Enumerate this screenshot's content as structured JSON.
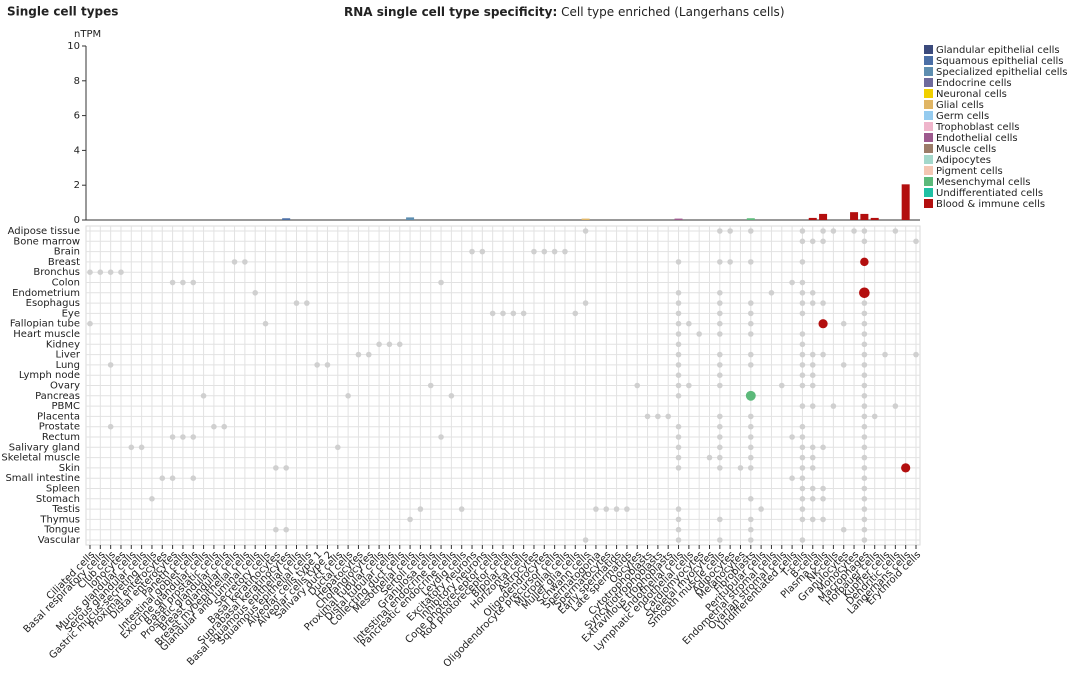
{
  "header": "Single cell types",
  "chart_data": {
    "type": "bar",
    "title": "RNA single cell type specificity:",
    "subtitle": "Cell type enriched (Langerhans cells)",
    "ylabel": "nTPM",
    "ylim": [
      0,
      10
    ],
    "yticks": [
      0,
      2,
      4,
      6,
      8,
      10
    ],
    "categories": [
      "Ciliated cells",
      "Basal respiratory cells",
      "Club cells",
      "Ionocytes",
      "Mucus glandular cells",
      "Serous glandular cells",
      "Gastric mucus-secreting cells",
      "Proximal enterocytes",
      "Distal enterocytes",
      "Paneth cells",
      "Intestinal goblet cells",
      "Exocrine glandular cells",
      "Basal prostatic cells",
      "Prostatic glandular cells",
      "Breast glandular cells",
      "Breast myoepithelial cells",
      "Glandular and luminal cells",
      "Secretory cells",
      "Basal keratinocytes",
      "Suprabasal keratinocytes",
      "Basal squamous epithelial cells",
      "Squamous epithelial cells",
      "Alveolar cells type 1",
      "Alveolar cells type 2",
      "Salivary duct cells",
      "Ductal cells",
      "Hepatocytes",
      "Cholangiocytes",
      "Proximal tubular cells",
      "Distal tubular cells",
      "Collecting duct cells",
      "Mesothelial cells",
      "Sertoli cells",
      "Granulosa cells",
      "Intestinal endocrine cells",
      "Pancreatic endocrine cells",
      "Leydig cells",
      "Excitatory neurons",
      "Inhibitory neurons",
      "Cone photoreceptor cells",
      "Rod photoreceptor cells",
      "Bipolar cells",
      "Horizontal cells",
      "Astrocytes",
      "Oligodendrocytes",
      "Oligodendrocyte precursor cells",
      "Microglial cells",
      "Müller glia cells",
      "Schwann cells",
      "Spermatogonia",
      "Spermatocytes",
      "Early spermatids",
      "Late spermatids",
      "Oocytes",
      "Cytotrophoblasts",
      "Syncytiotrophoblasts",
      "Extravillous trophoblasts",
      "Endothelial cells",
      "Lymphatic endothelial cells",
      "Cardiomyocytes",
      "Skeletal myocytes",
      "Smooth muscle cells",
      "Adipocytes",
      "Melanocytes",
      "Fibroblasts",
      "Peritubular cells",
      "Endometrial stromal cells",
      "Ovarian stromal cells",
      "Undifferentiated cells",
      "T-cells",
      "B-cells",
      "Plasma cells",
      "NK-cells",
      "Granulocytes",
      "Monocytes",
      "Macrophages",
      "Hofbauer cells",
      "Kupffer cells",
      "Dendritic cells",
      "Langerhans cells",
      "Erythroid cells"
    ],
    "values": [
      0,
      0,
      0,
      0,
      0,
      0,
      0,
      0,
      0,
      0,
      0,
      0,
      0,
      0,
      0,
      0,
      0,
      0,
      0,
      0.1,
      0,
      0,
      0,
      0,
      0,
      0,
      0,
      0,
      0,
      0,
      0,
      0.15,
      0,
      0,
      0,
      0,
      0,
      0,
      0,
      0,
      0,
      0,
      0,
      0,
      0,
      0,
      0,
      0,
      0.08,
      0,
      0,
      0,
      0,
      0,
      0,
      0,
      0,
      0.08,
      0,
      0,
      0,
      0,
      0,
      0,
      0.1,
      0,
      0,
      0,
      0,
      0,
      0.12,
      0.35,
      0,
      0,
      0.45,
      0.35,
      0.12,
      0,
      0,
      2.05,
      0
    ],
    "colors": [
      "#5e8eb0",
      "#5e8eb0",
      "#5e8eb0",
      "#5e8eb0",
      "#3b4a7c",
      "#3b4a7c",
      "#3b4a7c",
      "#3b4a7c",
      "#3b4a7c",
      "#3b4a7c",
      "#3b4a7c",
      "#3b4a7c",
      "#3b4a7c",
      "#3b4a7c",
      "#3b4a7c",
      "#3b4a7c",
      "#3b4a7c",
      "#3b4a7c",
      "#4b6fa6",
      "#4b6fa6",
      "#4b6fa6",
      "#4b6fa6",
      "#5e8eb0",
      "#5e8eb0",
      "#3b4a7c",
      "#3b4a7c",
      "#3b4a7c",
      "#3b4a7c",
      "#3b4a7c",
      "#3b4a7c",
      "#3b4a7c",
      "#5e8eb0",
      "#5e8eb0",
      "#5e8eb0",
      "#6e6a9c",
      "#6e6a9c",
      "#6e6a9c",
      "#f0d000",
      "#f0d000",
      "#f0d000",
      "#f0d000",
      "#f0d000",
      "#f0d000",
      "#e0b564",
      "#e0b564",
      "#e0b564",
      "#e0b564",
      "#e0b564",
      "#e0b564",
      "#95cbef",
      "#95cbef",
      "#95cbef",
      "#95cbef",
      "#95cbef",
      "#efb5cb",
      "#efb5cb",
      "#efb5cb",
      "#9d5a8e",
      "#9d5a8e",
      "#9c7c68",
      "#9c7c68",
      "#9c7c68",
      "#a3d8cb",
      "#f4c6b3",
      "#5cb97a",
      "#5cb97a",
      "#5cb97a",
      "#5cb97a",
      "#20c0a4",
      "#b30f0f",
      "#b30f0f",
      "#b30f0f",
      "#b30f0f",
      "#b30f0f",
      "#b30f0f",
      "#b30f0f",
      "#b30f0f",
      "#b30f0f",
      "#b30f0f",
      "#b30f0f",
      "#b30f0f"
    ],
    "legend": [
      {
        "name": "Glandular epithelial cells",
        "color": "#3b4a7c"
      },
      {
        "name": "Squamous epithelial cells",
        "color": "#4b6fa6"
      },
      {
        "name": "Specialized epithelial cells",
        "color": "#5e8eb0"
      },
      {
        "name": "Endocrine cells",
        "color": "#6e6a9c"
      },
      {
        "name": "Neuronal cells",
        "color": "#f0d000"
      },
      {
        "name": "Glial cells",
        "color": "#e0b564"
      },
      {
        "name": "Germ cells",
        "color": "#95cbef"
      },
      {
        "name": "Trophoblast cells",
        "color": "#efb5cb"
      },
      {
        "name": "Endothelial cells",
        "color": "#9d5a8e"
      },
      {
        "name": "Muscle cells",
        "color": "#9c7c68"
      },
      {
        "name": "Adipocytes",
        "color": "#a3d8cb"
      },
      {
        "name": "Pigment cells",
        "color": "#f4c6b3"
      },
      {
        "name": "Mesenchymal cells",
        "color": "#5cb97a"
      },
      {
        "name": "Undifferentiated cells",
        "color": "#20c0a4"
      },
      {
        "name": "Blood & immune cells",
        "color": "#b30f0f"
      }
    ],
    "tissues": [
      {
        "name": "Adipose tissue",
        "cells": [
          "Schwann cells",
          "Smooth muscle cells",
          "Adipocytes",
          "Fibroblasts",
          "T-cells",
          "Plasma cells",
          "NK-cells",
          "Monocytes",
          "Macrophages",
          "Dendritic cells"
        ],
        "values": [
          0,
          0,
          0,
          0,
          0,
          0,
          0,
          0,
          0,
          0
        ]
      },
      {
        "name": "Bone marrow",
        "cells": [
          "T-cells",
          "B-cells",
          "Plasma cells",
          "Macrophages",
          "Erythroid cells"
        ],
        "values": [
          0,
          0,
          0,
          0,
          0
        ]
      },
      {
        "name": "Brain",
        "cells": [
          "Excitatory neurons",
          "Inhibitory neurons",
          "Astrocytes",
          "Oligodendrocytes",
          "Oligodendrocyte precursor cells",
          "Microglial cells"
        ],
        "values": [
          0,
          0,
          0,
          0,
          0,
          0
        ]
      },
      {
        "name": "Breast",
        "cells": [
          "Breast glandular cells",
          "Breast myoepithelial cells",
          "Endothelial cells",
          "Smooth muscle cells",
          "Adipocytes",
          "Fibroblasts",
          "T-cells",
          "Macrophages"
        ],
        "values": [
          0,
          0,
          0,
          0,
          0,
          0,
          0,
          1.5
        ]
      },
      {
        "name": "Bronchus",
        "cells": [
          "Ciliated cells",
          "Basal respiratory cells",
          "Club cells",
          "Ionocytes"
        ],
        "values": [
          0,
          0,
          0,
          0
        ]
      },
      {
        "name": "Colon",
        "cells": [
          "Distal enterocytes",
          "Paneth cells",
          "Intestinal goblet cells",
          "Intestinal endocrine cells",
          "Undifferentiated cells",
          "T-cells"
        ],
        "values": [
          0,
          0,
          0,
          0,
          0,
          0
        ]
      },
      {
        "name": "Endometrium",
        "cells": [
          "Glandular and luminal cells",
          "Endothelial cells",
          "Smooth muscle cells",
          "Endometrial stromal cells",
          "T-cells",
          "B-cells",
          "Macrophages"
        ],
        "values": [
          0,
          0,
          0,
          0,
          0,
          0,
          3
        ]
      },
      {
        "name": "Esophagus",
        "cells": [
          "Basal squamous epithelial cells",
          "Squamous epithelial cells",
          "Schwann cells",
          "Endothelial cells",
          "Smooth muscle cells",
          "Fibroblasts",
          "T-cells",
          "B-cells",
          "Plasma cells",
          "Macrophages"
        ],
        "values": [
          0,
          0,
          0,
          0,
          0,
          0,
          0,
          0,
          0,
          0
        ]
      },
      {
        "name": "Eye",
        "cells": [
          "Cone photoreceptor cells",
          "Rod photoreceptor cells",
          "Bipolar cells",
          "Horizontal cells",
          "Müller glia cells",
          "Endothelial cells",
          "Smooth muscle cells",
          "Fibroblasts",
          "T-cells",
          "Macrophages"
        ],
        "values": [
          0,
          0,
          0,
          0,
          0,
          0,
          0,
          0,
          0,
          0
        ]
      },
      {
        "name": "Fallopian tube",
        "cells": [
          "Ciliated cells",
          "Secretory cells",
          "Endothelial cells",
          "Lymphatic endothelial cells",
          "Smooth muscle cells",
          "Fibroblasts",
          "Plasma cells",
          "Granulocytes",
          "Macrophages"
        ],
        "values": [
          0,
          0,
          0,
          0,
          0,
          0,
          2,
          0,
          0
        ]
      },
      {
        "name": "Heart muscle",
        "cells": [
          "Endothelial cells",
          "Cardiomyocytes",
          "Smooth muscle cells",
          "Fibroblasts",
          "T-cells",
          "Macrophages"
        ],
        "values": [
          0,
          0,
          0,
          0,
          0,
          0
        ]
      },
      {
        "name": "Kidney",
        "cells": [
          "Proximal tubular cells",
          "Distal tubular cells",
          "Collecting duct cells",
          "Endothelial cells",
          "T-cells",
          "Macrophages"
        ],
        "values": [
          0,
          0,
          0,
          0,
          0,
          0
        ]
      },
      {
        "name": "Liver",
        "cells": [
          "Hepatocytes",
          "Cholangiocytes",
          "Endothelial cells",
          "Smooth muscle cells",
          "Fibroblasts",
          "T-cells",
          "B-cells",
          "Plasma cells",
          "Macrophages",
          "Kupffer cells",
          "Erythroid cells"
        ],
        "values": [
          0,
          0,
          0,
          0,
          0,
          0,
          0,
          0,
          0,
          0,
          0
        ]
      },
      {
        "name": "Lung",
        "cells": [
          "Club cells",
          "Alveolar cells type 1",
          "Alveolar cells type 2",
          "Endothelial cells",
          "Smooth muscle cells",
          "Fibroblasts",
          "T-cells",
          "B-cells",
          "Granulocytes",
          "Macrophages"
        ],
        "values": [
          0,
          0,
          0,
          0,
          0,
          0,
          0,
          0,
          0,
          0
        ]
      },
      {
        "name": "Lymph node",
        "cells": [
          "Endothelial cells",
          "Smooth muscle cells",
          "T-cells",
          "B-cells",
          "Macrophages"
        ],
        "values": [
          0,
          0,
          0,
          0,
          0
        ]
      },
      {
        "name": "Ovary",
        "cells": [
          "Granulosa cells",
          "Oocytes",
          "Endothelial cells",
          "Lymphatic endothelial cells",
          "Smooth muscle cells",
          "Ovarian stromal cells",
          "T-cells",
          "B-cells",
          "Macrophages"
        ],
        "values": [
          0,
          0,
          0,
          0,
          0,
          0,
          0,
          0,
          0
        ]
      },
      {
        "name": "Pancreas",
        "cells": [
          "Exocrine glandular cells",
          "Ductal cells",
          "Pancreatic endocrine cells",
          "Endothelial cells",
          "Fibroblasts",
          "Macrophages"
        ],
        "values": [
          0,
          0,
          0,
          0,
          2.5,
          0
        ]
      },
      {
        "name": "PBMC",
        "cells": [
          "T-cells",
          "B-cells",
          "NK-cells",
          "Macrophages",
          "Dendritic cells"
        ],
        "values": [
          0,
          0,
          0,
          0,
          0
        ]
      },
      {
        "name": "Placenta",
        "cells": [
          "Cytotrophoblasts",
          "Syncytiotrophoblasts",
          "Extravillous trophoblasts",
          "Smooth muscle cells",
          "Fibroblasts",
          "Macrophages",
          "Hofbauer cells"
        ],
        "values": [
          0,
          0,
          0,
          0,
          0,
          0,
          0
        ]
      },
      {
        "name": "Prostate",
        "cells": [
          "Club cells",
          "Basal prostatic cells",
          "Prostatic glandular cells",
          "Endothelial cells",
          "Smooth muscle cells",
          "Fibroblasts",
          "T-cells",
          "Macrophages"
        ],
        "values": [
          0,
          0,
          0,
          0,
          0,
          0,
          0,
          0
        ]
      },
      {
        "name": "Rectum",
        "cells": [
          "Distal enterocytes",
          "Paneth cells",
          "Intestinal goblet cells",
          "Intestinal endocrine cells",
          "Endothelial cells",
          "Smooth muscle cells",
          "Fibroblasts",
          "Undifferentiated cells",
          "T-cells",
          "Macrophages"
        ],
        "values": [
          0,
          0,
          0,
          0,
          0,
          0,
          0,
          0,
          0,
          0
        ]
      },
      {
        "name": "Salivary gland",
        "cells": [
          "Mucus glandular cells",
          "Serous glandular cells",
          "Salivary duct cells",
          "Endothelial cells",
          "Smooth muscle cells",
          "Fibroblasts",
          "T-cells",
          "B-cells",
          "Plasma cells",
          "Macrophages"
        ],
        "values": [
          0,
          0,
          0,
          0,
          0,
          0,
          0,
          0,
          0,
          0
        ]
      },
      {
        "name": "Skeletal muscle",
        "cells": [
          "Endothelial cells",
          "Skeletal myocytes",
          "Smooth muscle cells",
          "Fibroblasts",
          "T-cells",
          "B-cells",
          "Macrophages"
        ],
        "values": [
          0,
          0,
          0,
          0,
          0,
          0,
          0
        ]
      },
      {
        "name": "Skin",
        "cells": [
          "Basal keratinocytes",
          "Suprabasal keratinocytes",
          "Endothelial cells",
          "Smooth muscle cells",
          "Melanocytes",
          "Fibroblasts",
          "T-cells",
          "B-cells",
          "Macrophages",
          "Langerhans cells"
        ],
        "values": [
          0,
          0,
          0,
          0,
          0,
          0,
          0,
          0,
          0,
          2
        ]
      },
      {
        "name": "Small intestine",
        "cells": [
          "Proximal enterocytes",
          "Distal enterocytes",
          "Intestinal goblet cells",
          "Undifferentiated cells",
          "T-cells",
          "Macrophages"
        ],
        "values": [
          0,
          0,
          0,
          0,
          0,
          0
        ]
      },
      {
        "name": "Spleen",
        "cells": [
          "T-cells",
          "B-cells",
          "Plasma cells",
          "Macrophages"
        ],
        "values": [
          0,
          0,
          0,
          0
        ]
      },
      {
        "name": "Stomach",
        "cells": [
          "Gastric mucus-secreting cells",
          "Fibroblasts",
          "T-cells",
          "B-cells",
          "Plasma cells",
          "Macrophages"
        ],
        "values": [
          0,
          0,
          0,
          0,
          0,
          0
        ]
      },
      {
        "name": "Testis",
        "cells": [
          "Sertoli cells",
          "Leydig cells",
          "Spermatogonia",
          "Spermatocytes",
          "Early spermatids",
          "Late spermatids",
          "Endothelial cells",
          "Peritubular cells",
          "T-cells",
          "Macrophages"
        ],
        "values": [
          0,
          0,
          0,
          0,
          0,
          0,
          0,
          0,
          0,
          0
        ]
      },
      {
        "name": "Thymus",
        "cells": [
          "Mesothelial cells",
          "Endothelial cells",
          "Smooth muscle cells",
          "Fibroblasts",
          "T-cells",
          "B-cells",
          "Plasma cells",
          "Macrophages"
        ],
        "values": [
          0,
          0,
          0,
          0,
          0,
          0,
          0,
          0
        ]
      },
      {
        "name": "Tongue",
        "cells": [
          "Basal keratinocytes",
          "Suprabasal keratinocytes",
          "Endothelial cells",
          "Fibroblasts",
          "Granulocytes",
          "Macrophages"
        ],
        "values": [
          0,
          0,
          0,
          0,
          0,
          0
        ]
      },
      {
        "name": "Vascular",
        "cells": [
          "Schwann cells",
          "Endothelial cells",
          "Smooth muscle cells",
          "Fibroblasts",
          "T-cells",
          "Macrophages"
        ],
        "values": [
          0,
          0,
          0,
          0,
          0,
          0
        ]
      }
    ]
  }
}
